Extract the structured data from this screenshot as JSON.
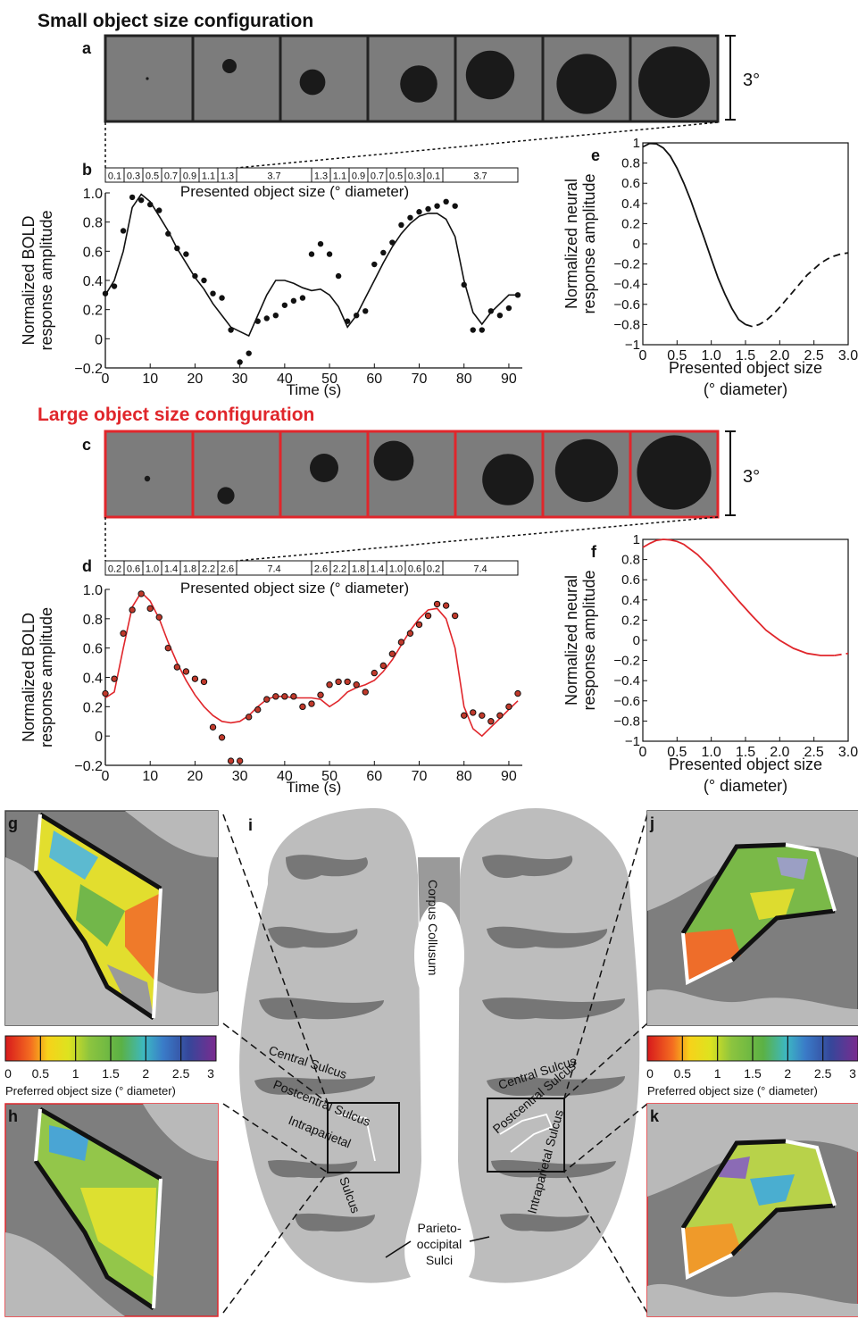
{
  "small_config": {
    "title": "Small object size configuration",
    "panel_a": "a",
    "panel_b": "b",
    "panel_e": "e",
    "degree_label": "3°",
    "dot_diameters": [
      0.1,
      0.5,
      0.9,
      1.3,
      1.7,
      2.1,
      2.5
    ],
    "timeline_labels": [
      "0.1",
      "0.3",
      "0.5",
      "0.7",
      "0.9",
      "1.1",
      "1.3",
      "3.7",
      "1.3",
      "1.1",
      "0.9",
      "0.7",
      "0.5",
      "0.3",
      "0.1",
      "3.7"
    ],
    "timeline_caption": "Presented object size (° diameter)"
  },
  "large_config": {
    "title": "Large object size configuration",
    "title_color": "#e0262b",
    "panel_c": "c",
    "panel_d": "d",
    "panel_f": "f",
    "degree_label": "3°",
    "dot_diameters": [
      0.2,
      0.6,
      1.0,
      1.4,
      1.8,
      2.2,
      2.6
    ],
    "timeline_labels": [
      "0.2",
      "0.6",
      "1.0",
      "1.4",
      "1.8",
      "2.2",
      "2.6",
      "7.4",
      "2.6",
      "2.2",
      "1.8",
      "1.4",
      "1.0",
      "0.6",
      "0.2",
      "7.4"
    ],
    "timeline_caption": "Presented object size (° diameter)"
  },
  "bold_axes": {
    "ylabel_line1": "Normalized BOLD",
    "ylabel_line2": "response amplitude",
    "xlabel": "Time (s)",
    "xticks": [
      "0",
      "10",
      "20",
      "30",
      "40",
      "50",
      "60",
      "70",
      "80",
      "90"
    ],
    "yticks": [
      "1.0",
      "0.8",
      "0.6",
      "0.4",
      "0.2",
      "0",
      "−0.2"
    ]
  },
  "neural_axes": {
    "ylabel_line1": "Normalized neural",
    "ylabel_line2": "response amplitude",
    "xlabel_line1": "Presented object size",
    "xlabel_line2": "(° diameter)",
    "xticks": [
      "0",
      "0.5",
      "1.0",
      "1.5",
      "2.0",
      "2.5",
      "3.0"
    ],
    "yticks": [
      "1",
      "0.8",
      "0.6",
      "0.4",
      "0.2",
      "0",
      "−0.2",
      "−0.4",
      "−0.6",
      "−0.8",
      "−1"
    ]
  },
  "chart_data": [
    {
      "type": "scatter",
      "panel": "b",
      "xlabel": "Time (s)",
      "ylabel": "Normalized BOLD response amplitude",
      "xlim": [
        0,
        93
      ],
      "ylim": [
        -0.2,
        1.0
      ],
      "series": [
        {
          "x": [
            0,
            2,
            4,
            6,
            8,
            10,
            12,
            14,
            16,
            18,
            20,
            22,
            24,
            26,
            28,
            30,
            32,
            34,
            36,
            38,
            40,
            42,
            44,
            46,
            48,
            50,
            52,
            54,
            56,
            58,
            60,
            62,
            64,
            66,
            68,
            70,
            72,
            74,
            76,
            78,
            80,
            82,
            84,
            86,
            88,
            90,
            92
          ],
          "y": [
            0.31,
            0.36,
            0.74,
            0.97,
            0.95,
            0.92,
            0.88,
            0.72,
            0.62,
            0.58,
            0.43,
            0.4,
            0.31,
            0.28,
            0.06,
            -0.16,
            -0.1,
            0.12,
            0.14,
            0.16,
            0.23,
            0.26,
            0.28,
            0.58,
            0.65,
            0.58,
            0.43,
            0.12,
            0.16,
            0.19,
            0.51,
            0.59,
            0.66,
            0.78,
            0.83,
            0.87,
            0.89,
            0.91,
            0.94,
            0.91,
            0.37,
            0.06,
            0.06,
            0.19,
            0.16,
            0.21,
            0.3
          ]
        },
        {
          "x": [
            0,
            2,
            4,
            6,
            8,
            10,
            12,
            14,
            16,
            18,
            20,
            22,
            24,
            26,
            28,
            30,
            32,
            34,
            36,
            38,
            40,
            42,
            44,
            46,
            48,
            50,
            52,
            54,
            56,
            58,
            60,
            62,
            64,
            66,
            68,
            70,
            72,
            74,
            76,
            78,
            80,
            82,
            84,
            86,
            88,
            90,
            92
          ],
          "y": [
            0.3,
            0.4,
            0.6,
            0.9,
            0.99,
            0.94,
            0.84,
            0.74,
            0.62,
            0.52,
            0.42,
            0.34,
            0.24,
            0.16,
            0.08,
            0.05,
            0.02,
            0.16,
            0.3,
            0.4,
            0.4,
            0.38,
            0.35,
            0.33,
            0.34,
            0.3,
            0.22,
            0.08,
            0.16,
            0.28,
            0.4,
            0.52,
            0.63,
            0.72,
            0.79,
            0.84,
            0.86,
            0.86,
            0.82,
            0.7,
            0.4,
            0.18,
            0.1,
            0.18,
            0.24,
            0.3,
            0.3
          ]
        }
      ]
    },
    {
      "type": "scatter",
      "panel": "d",
      "xlabel": "Time (s)",
      "ylabel": "Normalized BOLD response amplitude",
      "xlim": [
        0,
        93
      ],
      "ylim": [
        -0.2,
        1.0
      ],
      "series": [
        {
          "x": [
            0,
            2,
            4,
            6,
            8,
            10,
            12,
            14,
            16,
            18,
            20,
            22,
            24,
            26,
            28,
            30,
            32,
            34,
            36,
            38,
            40,
            42,
            44,
            46,
            48,
            50,
            52,
            54,
            56,
            58,
            60,
            62,
            64,
            66,
            68,
            70,
            72,
            74,
            76,
            78,
            80,
            82,
            84,
            86,
            88,
            90,
            92
          ],
          "y": [
            0.29,
            0.39,
            0.7,
            0.86,
            0.97,
            0.87,
            0.81,
            0.6,
            0.47,
            0.44,
            0.39,
            0.37,
            0.06,
            -0.01,
            -0.17,
            -0.17,
            0.13,
            0.18,
            0.25,
            0.27,
            0.27,
            0.27,
            0.2,
            0.22,
            0.28,
            0.35,
            0.37,
            0.37,
            0.35,
            0.3,
            0.43,
            0.48,
            0.56,
            0.64,
            0.7,
            0.76,
            0.82,
            0.9,
            0.89,
            0.82,
            0.14,
            0.16,
            0.14,
            0.1,
            0.14,
            0.2,
            0.29
          ]
        },
        {
          "x": [
            0,
            2,
            4,
            6,
            8,
            10,
            12,
            14,
            16,
            18,
            20,
            22,
            24,
            26,
            28,
            30,
            32,
            34,
            36,
            38,
            40,
            42,
            44,
            46,
            48,
            50,
            52,
            54,
            56,
            58,
            60,
            62,
            64,
            66,
            68,
            70,
            72,
            74,
            76,
            78,
            80,
            82,
            84,
            86,
            88,
            90,
            92
          ],
          "y": [
            0.26,
            0.3,
            0.6,
            0.88,
            0.98,
            0.92,
            0.8,
            0.64,
            0.5,
            0.38,
            0.28,
            0.2,
            0.14,
            0.1,
            0.09,
            0.1,
            0.14,
            0.2,
            0.25,
            0.27,
            0.27,
            0.26,
            0.26,
            0.26,
            0.25,
            0.2,
            0.24,
            0.3,
            0.33,
            0.35,
            0.38,
            0.44,
            0.52,
            0.62,
            0.72,
            0.8,
            0.86,
            0.87,
            0.8,
            0.6,
            0.2,
            0.05,
            0.0,
            0.06,
            0.12,
            0.18,
            0.24
          ]
        }
      ]
    },
    {
      "type": "line",
      "panel": "e",
      "xlabel": "Presented object size (° diameter)",
      "ylabel": "Normalized neural response amplitude",
      "xlim": [
        0,
        3.0
      ],
      "ylim": [
        -1,
        1
      ],
      "series": [
        {
          "x": [
            0,
            0.1,
            0.2,
            0.3,
            0.4,
            0.5,
            0.6,
            0.7,
            0.8,
            0.9,
            1.0,
            1.1,
            1.2,
            1.3,
            1.4,
            1.5
          ],
          "y": [
            0.96,
            0.995,
            0.99,
            0.95,
            0.87,
            0.75,
            0.6,
            0.43,
            0.24,
            0.05,
            -0.15,
            -0.34,
            -0.5,
            -0.64,
            -0.75,
            -0.8
          ]
        },
        {
          "x": [
            1.5,
            1.6,
            1.7,
            1.8,
            1.9,
            2.0,
            2.1,
            2.2,
            2.3,
            2.4,
            2.5,
            2.6,
            2.7,
            2.8,
            2.9,
            3.0
          ],
          "y": [
            -0.8,
            -0.82,
            -0.8,
            -0.76,
            -0.7,
            -0.63,
            -0.55,
            -0.47,
            -0.39,
            -0.31,
            -0.25,
            -0.19,
            -0.15,
            -0.12,
            -0.1,
            -0.09
          ]
        }
      ]
    },
    {
      "type": "line",
      "panel": "f",
      "xlabel": "Presented object size (° diameter)",
      "ylabel": "Normalized neural response amplitude",
      "xlim": [
        0,
        3.0
      ],
      "ylim": [
        -1,
        1
      ],
      "series": [
        {
          "x": [
            0,
            0.1,
            0.2,
            0.3,
            0.4,
            0.5,
            0.6,
            0.8,
            1.0,
            1.2,
            1.4,
            1.6,
            1.8,
            2.0,
            2.2,
            2.4,
            2.6,
            2.8
          ],
          "y": [
            0.92,
            0.96,
            0.99,
            1.0,
            0.995,
            0.98,
            0.95,
            0.85,
            0.71,
            0.55,
            0.39,
            0.24,
            0.1,
            0.0,
            -0.08,
            -0.13,
            -0.15,
            -0.15
          ]
        },
        {
          "x": [
            2.8,
            2.9,
            3.0
          ],
          "y": [
            -0.15,
            -0.14,
            -0.13
          ]
        }
      ]
    }
  ],
  "brain": {
    "panel_g": "g",
    "panel_h": "h",
    "panel_i": "i",
    "panel_j": "j",
    "panel_k": "k",
    "corpus": "Corpus Collusum",
    "central_left": "Central Sulcus",
    "central_right": "Central Sulcus",
    "postcentral_left": "Postcentral Sulcus",
    "postcentral_right": "Postcentral Sulcus",
    "intraparietal_left_1": "Intraparietal",
    "intraparietal_left_2": "Sulcus",
    "intraparietal_right": "Intraparietal Sulcus",
    "parieto_1": "Parieto-",
    "parieto_2": "occipital",
    "parieto_3": "Sulci",
    "colorbar_ticks": [
      "0",
      "0.5",
      "1",
      "1.5",
      "2",
      "2.5",
      "3"
    ],
    "colorbar_caption": "Preferred object size (° diameter)"
  }
}
